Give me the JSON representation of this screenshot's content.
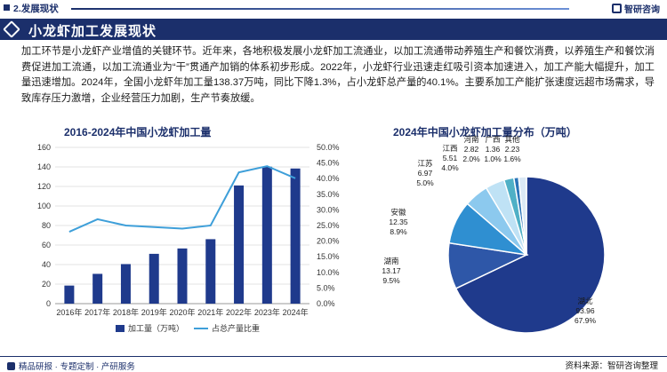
{
  "header": {
    "section_label": "2.发展现状",
    "brand": "智研咨询",
    "title": "小龙虾加工发展现状"
  },
  "body_text": "加工环节是小龙虾产业增值的关键环节。近年来，各地积极发展小龙虾加工流通业，以加工流通带动养殖生产和餐饮消费，以养殖生产和餐饮消费促进加工流通，以加工流通业为“干”贯通产加销的体系初步形成。2022年，小龙虾行业迅速走红吸引资本加速进入，加工产能大幅提升，加工量迅速增加。2024年，全国小龙虾年加工量138.37万吨，同比下降1.3%，占小龙虾总产量的40.1%。主要系加工产能扩张速度远超市场需求，导致库存压力激增，企业经营压力加剧，生产节奏放缓。",
  "footer": {
    "left": "精品研报 · 专题定制 · 产研服务",
    "right": "资料来源：智研咨询整理"
  },
  "colors": {
    "primary": "#1b2f6b",
    "bar": "#1f3a8c",
    "line": "#3e9fd9",
    "pie": [
      "#1f3a8c",
      "#2e57a8",
      "#2f8fd1",
      "#8cc9ee",
      "#bfe2f5",
      "#4fb0c6",
      "#2a74b8",
      "#dbe9f5"
    ]
  },
  "chart_data": [
    {
      "type": "bar",
      "title": "2016-2024年中国小龙虾加工量",
      "categories": [
        "2016年",
        "2017年",
        "2018年",
        "2019年",
        "2020年",
        "2021年",
        "2022年",
        "2023年",
        "2024年"
      ],
      "series": [
        {
          "name": "加工量（万吨）",
          "type": "bar",
          "axis": "left",
          "values": [
            18.5,
            30.5,
            40.5,
            51,
            56.5,
            66,
            121,
            140.2,
            138.37
          ]
        },
        {
          "name": "占总产量比重",
          "type": "line",
          "axis": "right",
          "values": [
            23.0,
            27.0,
            25.0,
            24.5,
            24.0,
            25.0,
            42.0,
            44.0,
            40.1
          ]
        }
      ],
      "y_left": {
        "min": 0,
        "max": 160,
        "ticks": [
          "0",
          "20",
          "40",
          "60",
          "80",
          "100",
          "120",
          "140",
          "160"
        ]
      },
      "y_right": {
        "min": 0,
        "max": 50,
        "ticks": [
          "0.0%",
          "5.0%",
          "10.0%",
          "15.0%",
          "20.0%",
          "25.0%",
          "30.0%",
          "35.0%",
          "40.0%",
          "45.0%",
          "50.0%"
        ]
      },
      "gridlines": true,
      "legend_position": "bottom"
    },
    {
      "type": "pie",
      "title": "2024年中国小龙虾加工量分布（万吨）",
      "slices": [
        {
          "name": "湖北",
          "value": 93.96,
          "percent": "67.9%",
          "value_label": "93.96"
        },
        {
          "name": "湖南",
          "value": 13.17,
          "percent": "9.5%",
          "value_label": "13.17"
        },
        {
          "name": "安徽",
          "value": 12.35,
          "percent": "8.9%",
          "value_label": "12.35"
        },
        {
          "name": "江苏",
          "value": 6.97,
          "percent": "5.0%",
          "value_label": "6.97"
        },
        {
          "name": "江西",
          "value": 5.51,
          "percent": "4.0%",
          "value_label": "5.51"
        },
        {
          "name": "河南",
          "value": 2.82,
          "percent": "2.0%",
          "value_label": "2.82"
        },
        {
          "name": "广西",
          "value": 1.36,
          "percent": "1.0%",
          "value_label": "1.36"
        },
        {
          "name": "其他",
          "value": 2.23,
          "percent": "1.6%",
          "value_label": "2.23"
        }
      ]
    }
  ]
}
